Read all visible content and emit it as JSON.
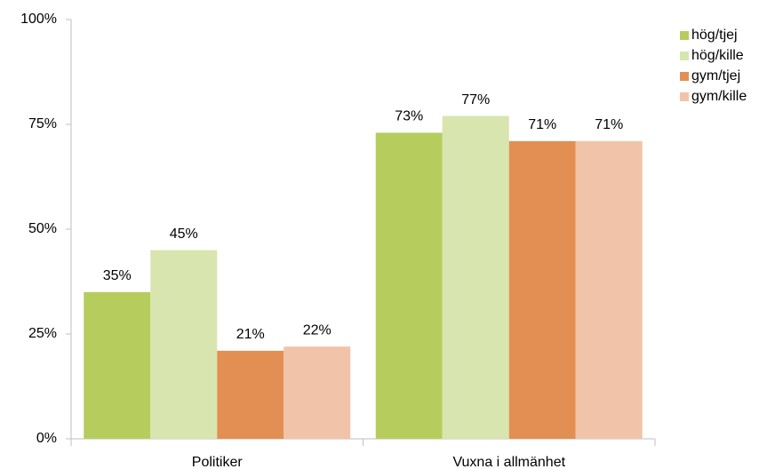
{
  "chart_data": {
    "type": "bar",
    "categories": [
      "Politiker",
      "Vuxna i allmänhet"
    ],
    "series": [
      {
        "name": "hög/tjej",
        "color": "#b6cd5e",
        "values": [
          35,
          73
        ],
        "value_labels": [
          "35%",
          "73%"
        ]
      },
      {
        "name": "hög/kille",
        "color": "#d8e5ae",
        "values": [
          45,
          77
        ],
        "value_labels": [
          "45%",
          "77%"
        ]
      },
      {
        "name": "gym/tjej",
        "color": "#e38f54",
        "values": [
          21,
          71
        ],
        "value_labels": [
          "21%",
          "71%"
        ]
      },
      {
        "name": "gym/kille",
        "color": "#f1c4a9",
        "values": [
          22,
          71
        ],
        "value_labels": [
          "22%",
          "71%"
        ]
      }
    ],
    "ylim": [
      0,
      100
    ],
    "yticks": [
      {
        "value": 0,
        "label": "0%"
      },
      {
        "value": 25,
        "label": "25%"
      },
      {
        "value": 50,
        "label": "50%"
      },
      {
        "value": 75,
        "label": "75%"
      },
      {
        "value": 100,
        "label": "100%"
      }
    ],
    "grid": false,
    "legend": "top-right"
  }
}
